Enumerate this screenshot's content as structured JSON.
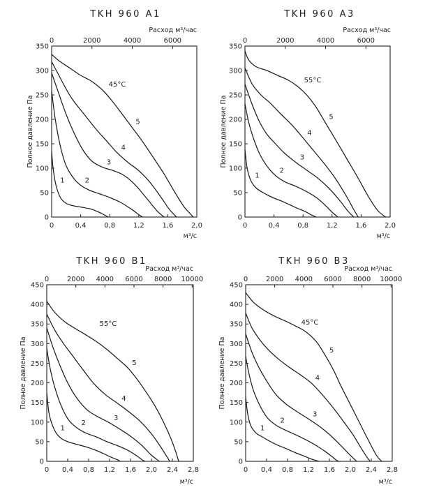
{
  "chart_data": [
    {
      "type": "line",
      "title": "TKH 960 A1",
      "xlabel": "м³/с",
      "ylabel": "Полное давление Па",
      "top_axis_label": "Расход м³/час",
      "xlim": [
        0,
        2.0
      ],
      "ylim": [
        0,
        350
      ],
      "x_ticks": [
        "0",
        "0,4",
        "0,8",
        "1,2",
        "1,6",
        "2,0"
      ],
      "y_ticks": [
        "0",
        "50",
        "100",
        "150",
        "200",
        "250",
        "300",
        "350"
      ],
      "top_ticks": [
        "0",
        "2000",
        "4000",
        "6000"
      ],
      "top_tick_values": [
        0,
        2000,
        4000,
        6000
      ],
      "annotation": "45°C",
      "series": [
        {
          "name": "1",
          "x": [
            0,
            0.02,
            0.06,
            0.12,
            0.2,
            0.3,
            0.42,
            0.55,
            0.65,
            0.73,
            0.78
          ],
          "y": [
            135,
            100,
            65,
            40,
            28,
            23,
            20,
            16,
            10,
            4,
            0
          ]
        },
        {
          "name": "2",
          "x": [
            0,
            0.05,
            0.12,
            0.2,
            0.3,
            0.4,
            0.52,
            0.65,
            0.8,
            0.95,
            1.1,
            1.2,
            1.25
          ],
          "y": [
            258,
            200,
            145,
            105,
            80,
            65,
            55,
            48,
            40,
            30,
            16,
            5,
            0
          ]
        },
        {
          "name": "3",
          "x": [
            0,
            0.1,
            0.2,
            0.3,
            0.42,
            0.55,
            0.7,
            0.85,
            1.0,
            1.15,
            1.3,
            1.45,
            1.55
          ],
          "y": [
            295,
            252,
            210,
            175,
            140,
            115,
            102,
            95,
            85,
            66,
            40,
            13,
            0
          ]
        },
        {
          "name": "4",
          "x": [
            0,
            0.1,
            0.2,
            0.3,
            0.45,
            0.6,
            0.75,
            0.9,
            1.05,
            1.2,
            1.35,
            1.5,
            1.62,
            1.72
          ],
          "y": [
            318,
            290,
            262,
            238,
            210,
            182,
            157,
            132,
            112,
            95,
            72,
            42,
            16,
            0
          ]
        },
        {
          "name": "5",
          "x": [
            0,
            0.1,
            0.25,
            0.4,
            0.55,
            0.7,
            0.82,
            0.95,
            1.1,
            1.25,
            1.4,
            1.55,
            1.7,
            1.82,
            1.92,
            1.95
          ],
          "y": [
            333,
            320,
            305,
            290,
            278,
            260,
            240,
            215,
            185,
            155,
            122,
            88,
            50,
            22,
            5,
            0
          ]
        }
      ]
    },
    {
      "type": "line",
      "title": "TKH 960 A3",
      "xlabel": "м³/с",
      "ylabel": "Полное давление Па",
      "top_axis_label": "Расход м³/час",
      "xlim": [
        0,
        2.0
      ],
      "ylim": [
        0,
        350
      ],
      "x_ticks": [
        "0",
        "0,4",
        "0,8",
        "1,2",
        "1,6",
        "2,0"
      ],
      "y_ticks": [
        "0",
        "50",
        "100",
        "150",
        "200",
        "250",
        "300",
        "350"
      ],
      "top_ticks": [
        "0",
        "2000",
        "4000",
        "6000"
      ],
      "top_tick_values": [
        0,
        2000,
        4000,
        6000
      ],
      "annotation": "55°C",
      "series": [
        {
          "name": "1",
          "x": [
            0,
            0.03,
            0.08,
            0.15,
            0.25,
            0.38,
            0.5,
            0.62,
            0.72,
            0.82,
            0.92,
            0.98
          ],
          "y": [
            138,
            100,
            75,
            60,
            50,
            40,
            33,
            25,
            18,
            12,
            4,
            0
          ]
        },
        {
          "name": "2",
          "x": [
            0,
            0.05,
            0.12,
            0.2,
            0.3,
            0.42,
            0.55,
            0.7,
            0.85,
            1.0,
            1.12,
            1.2,
            1.28
          ],
          "y": [
            232,
            195,
            160,
            130,
            105,
            85,
            72,
            63,
            52,
            38,
            22,
            10,
            0
          ]
        },
        {
          "name": "3",
          "x": [
            0,
            0.1,
            0.2,
            0.3,
            0.42,
            0.55,
            0.7,
            0.85,
            1.0,
            1.15,
            1.3,
            1.42,
            1.5
          ],
          "y": [
            272,
            230,
            195,
            170,
            150,
            130,
            112,
            96,
            80,
            60,
            35,
            12,
            0
          ]
        },
        {
          "name": "4",
          "x": [
            0,
            0.1,
            0.22,
            0.35,
            0.5,
            0.65,
            0.8,
            0.95,
            1.1,
            1.25,
            1.4,
            1.5,
            1.56
          ],
          "y": [
            305,
            272,
            250,
            233,
            210,
            188,
            162,
            135,
            108,
            78,
            42,
            15,
            0
          ]
        },
        {
          "name": "5",
          "x": [
            0,
            0.05,
            0.15,
            0.3,
            0.45,
            0.6,
            0.72,
            0.85,
            0.98,
            1.1,
            1.25,
            1.4,
            1.55,
            1.7,
            1.82,
            1.9,
            1.94
          ],
          "y": [
            340,
            322,
            308,
            300,
            290,
            280,
            268,
            250,
            225,
            195,
            158,
            120,
            82,
            42,
            15,
            4,
            0
          ]
        }
      ]
    },
    {
      "type": "line",
      "title": "TKH 960 B1",
      "xlabel": "м³/с",
      "ylabel": "Полное давление Па",
      "top_axis_label": "Расход м³/час",
      "xlim": [
        0,
        2.8
      ],
      "ylim": [
        0,
        450
      ],
      "x_ticks": [
        "0",
        "0,4",
        "0,8",
        "1,2",
        "1,6",
        "2,0",
        "2,4",
        "2,8"
      ],
      "y_ticks": [
        "0",
        "50",
        "100",
        "150",
        "200",
        "250",
        "300",
        "350",
        "400",
        "450"
      ],
      "top_ticks": [
        "0",
        "2000",
        "4000",
        "6000",
        "8000",
        "10000"
      ],
      "top_tick_values": [
        0,
        2000,
        4000,
        6000,
        8000,
        10000
      ],
      "annotation": "55°C",
      "series": [
        {
          "name": "1",
          "x": [
            0,
            0.04,
            0.1,
            0.18,
            0.28,
            0.4,
            0.55,
            0.72,
            0.9,
            1.08,
            1.22,
            1.35,
            1.4
          ],
          "y": [
            175,
            125,
            95,
            72,
            58,
            50,
            44,
            38,
            30,
            20,
            11,
            4,
            0
          ]
        },
        {
          "name": "2",
          "x": [
            0,
            0.06,
            0.15,
            0.28,
            0.42,
            0.58,
            0.75,
            0.95,
            1.15,
            1.35,
            1.55,
            1.72,
            1.82,
            1.88
          ],
          "y": [
            288,
            240,
            190,
            140,
            105,
            85,
            72,
            62,
            50,
            40,
            28,
            14,
            4,
            0
          ]
        },
        {
          "name": "3",
          "x": [
            0,
            0.12,
            0.25,
            0.4,
            0.58,
            0.78,
            1.0,
            1.2,
            1.42,
            1.62,
            1.82,
            1.98,
            2.1,
            2.15
          ],
          "y": [
            340,
            290,
            245,
            200,
            160,
            130,
            112,
            98,
            80,
            62,
            40,
            18,
            5,
            0
          ]
        },
        {
          "name": "4",
          "x": [
            0,
            0.15,
            0.32,
            0.5,
            0.7,
            0.9,
            1.12,
            1.35,
            1.58,
            1.8,
            2.0,
            2.15,
            2.28,
            2.35
          ],
          "y": [
            375,
            335,
            300,
            268,
            232,
            198,
            170,
            148,
            125,
            100,
            70,
            42,
            15,
            0
          ]
        },
        {
          "name": "5",
          "x": [
            0,
            0.15,
            0.35,
            0.55,
            0.75,
            0.95,
            1.15,
            1.35,
            1.55,
            1.72,
            1.88,
            2.05,
            2.2,
            2.35,
            2.45,
            2.52
          ],
          "y": [
            408,
            380,
            355,
            338,
            322,
            305,
            285,
            262,
            238,
            210,
            180,
            145,
            108,
            65,
            30,
            0
          ]
        }
      ]
    },
    {
      "type": "line",
      "title": "TKH 960 B3",
      "xlabel": "м³/с",
      "ylabel": "Полное давление Па",
      "top_axis_label": "Расход м³/час",
      "xlim": [
        0,
        2.8
      ],
      "ylim": [
        0,
        450
      ],
      "x_ticks": [
        "0",
        "0,4",
        "0,8",
        "1,2",
        "1,6",
        "2,0",
        "2,4",
        "2,8"
      ],
      "y_ticks": [
        "0",
        "50",
        "100",
        "150",
        "200",
        "250",
        "300",
        "350",
        "400",
        "450"
      ],
      "top_ticks": [
        "0",
        "2000",
        "4000",
        "6000",
        "8000",
        "10000"
      ],
      "top_tick_values": [
        0,
        2000,
        4000,
        6000,
        8000,
        10000
      ],
      "annotation": "45°C",
      "series": [
        {
          "name": "1",
          "x": [
            0,
            0.04,
            0.1,
            0.2,
            0.32,
            0.45,
            0.6,
            0.78,
            0.95,
            1.12,
            1.25,
            1.35,
            1.4
          ],
          "y": [
            165,
            120,
            90,
            72,
            62,
            52,
            42,
            32,
            22,
            13,
            6,
            2,
            0
          ]
        },
        {
          "name": "2",
          "x": [
            0,
            0.06,
            0.15,
            0.28,
            0.42,
            0.58,
            0.75,
            0.95,
            1.15,
            1.35,
            1.52,
            1.65,
            1.72,
            1.78
          ],
          "y": [
            268,
            225,
            180,
            140,
            110,
            92,
            80,
            68,
            55,
            40,
            25,
            12,
            4,
            0
          ]
        },
        {
          "name": "3",
          "x": [
            0,
            0.12,
            0.25,
            0.4,
            0.58,
            0.78,
            1.0,
            1.2,
            1.42,
            1.62,
            1.82,
            1.98,
            2.08,
            2.12
          ],
          "y": [
            325,
            278,
            240,
            205,
            170,
            145,
            125,
            108,
            88,
            66,
            40,
            18,
            5,
            0
          ]
        },
        {
          "name": "4",
          "x": [
            0,
            0.12,
            0.28,
            0.45,
            0.65,
            0.85,
            1.05,
            1.25,
            1.45,
            1.65,
            1.85,
            2.05,
            2.2,
            2.32,
            2.38
          ],
          "y": [
            378,
            340,
            308,
            282,
            258,
            238,
            220,
            200,
            172,
            140,
            105,
            68,
            35,
            10,
            0
          ]
        },
        {
          "name": "5",
          "x": [
            0,
            0.15,
            0.35,
            0.55,
            0.75,
            0.95,
            1.15,
            1.35,
            1.52,
            1.68,
            1.82,
            1.98,
            2.15,
            2.32,
            2.5,
            2.6
          ],
          "y": [
            430,
            405,
            385,
            370,
            358,
            345,
            330,
            305,
            270,
            232,
            192,
            150,
            105,
            60,
            15,
            0
          ]
        }
      ]
    }
  ]
}
